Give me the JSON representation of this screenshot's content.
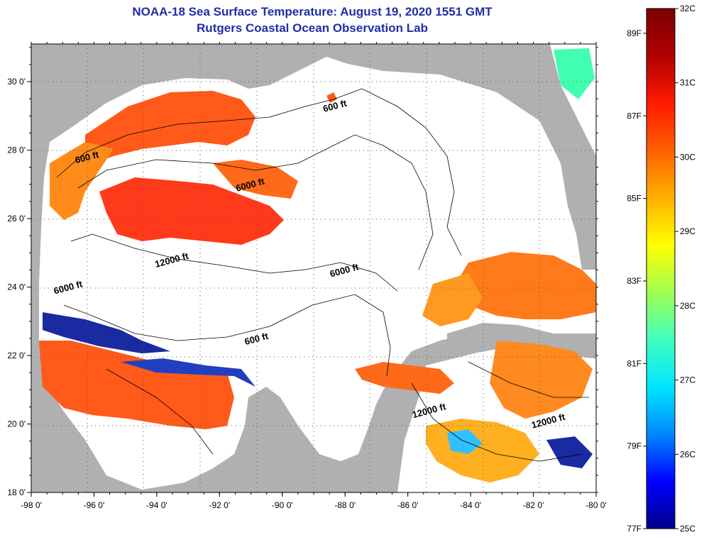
{
  "title": "NOAA-18 Sea Surface Temperature:  August 19, 2020 1551 GMT",
  "subtitle": "Rutgers Coastal Ocean Observation Lab",
  "longitude_labels": [
    "-98 0'",
    "-96 0'",
    "-94 0'",
    "-92 0'",
    "-90 0'",
    "-88 0'",
    "-86 0'",
    "-84 0'",
    "-82 0'",
    "-80 0'"
  ],
  "latitude_labels": [
    "30 0'",
    "28 0'",
    "26 0'",
    "24 0'",
    "22 0'",
    "20 0'",
    "18 0'"
  ],
  "contour_labels": [
    {
      "text": "600 ft",
      "lon": -88.3,
      "lat": 29.2
    },
    {
      "text": "600 ft",
      "lon": -96.2,
      "lat": 27.7
    },
    {
      "text": "6000 ft",
      "lon": -91.0,
      "lat": 26.9
    },
    {
      "text": "12000 ft",
      "lon": -93.5,
      "lat": 24.7
    },
    {
      "text": "6000 ft",
      "lon": -88.0,
      "lat": 24.4
    },
    {
      "text": "6000 ft",
      "lon": -96.8,
      "lat": 23.9
    },
    {
      "text": "600 ft",
      "lon": -90.8,
      "lat": 22.4
    },
    {
      "text": "12000 ft",
      "lon": -85.3,
      "lat": 20.3
    },
    {
      "text": "12000 ft",
      "lon": -81.5,
      "lat": 20.0
    }
  ],
  "colorbar": {
    "celsius_labels": [
      "32C",
      "31C",
      "30C",
      "29C",
      "28C",
      "27C",
      "26C",
      "25C"
    ],
    "fahrenheit_labels": [
      "89F",
      "87F",
      "85F",
      "83F",
      "81F",
      "79F",
      "77F"
    ],
    "gradient": [
      "#00008b",
      "#0000ff",
      "#0088ff",
      "#00e5ff",
      "#40ffbf",
      "#a0ff50",
      "#ffff00",
      "#ffb000",
      "#ff6000",
      "#ff1a00",
      "#b00000",
      "#7a0000"
    ]
  },
  "colors": {
    "land": "#b0b0b0",
    "no_data": "#ffffff",
    "title": "#1f2ea8"
  }
}
